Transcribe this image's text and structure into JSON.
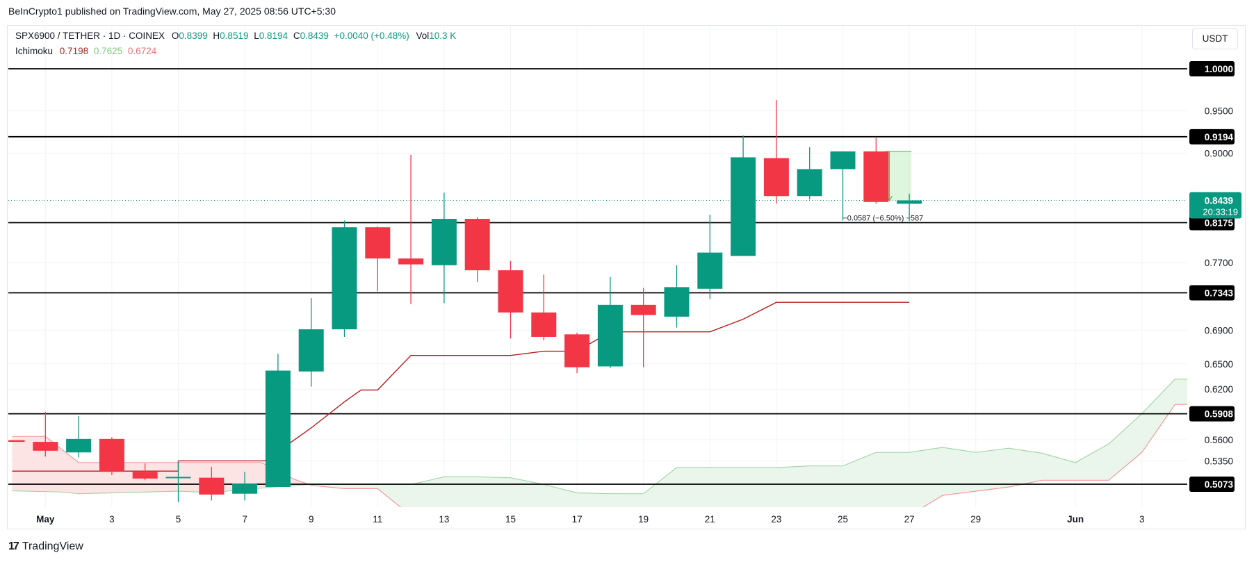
{
  "header": {
    "publisher_line": "BeInCrypto1 published on TradingView.com, May 27, 2025 08:56 UTC+5:30"
  },
  "legend": {
    "symbol": "SPX6900 / TETHER · 1D · COINEX",
    "o_label": "O",
    "o": "0.8399",
    "h_label": "H",
    "h": "0.8519",
    "l_label": "L",
    "l": "0.8194",
    "c_label": "C",
    "c": "0.8439",
    "change": "+0.0040 (+0.48%)",
    "vol_label": "Vol",
    "vol": "10.3 K",
    "indicator_name": "Ichimoku",
    "ichi_1": "0.7198",
    "ichi_2": "0.7625",
    "ichi_3": "0.6724"
  },
  "currency_button": "USDT",
  "footer": {
    "brand": "TradingView",
    "logo_glyph": "17"
  },
  "measure_label": "−0.0587 (−6.50%) −587",
  "last_price": {
    "value": "0.8439",
    "countdown": "20:33:19"
  },
  "colors": {
    "up": "#089981",
    "down": "#f23645",
    "conversion": "#b71c1c",
    "cloud_green": "#a5d6a7",
    "cloud_red": "#ef9a9a",
    "cloud_green_fill": "#e8f5e9",
    "cloud_red_fill": "#fde4e4"
  },
  "chart_data": {
    "type": "candlestick",
    "y_axis": {
      "ticks": [
        "0.9500",
        "0.9000",
        "0.7700",
        "0.6900",
        "0.6500",
        "0.6200",
        "0.5600",
        "0.5350"
      ],
      "ylim": [
        0.4998,
        1.0205
      ],
      "position": "right"
    },
    "x_axis": {
      "ticks": [
        {
          "label": "May",
          "day": 1,
          "bold": true
        },
        {
          "label": "3",
          "day": 3
        },
        {
          "label": "5",
          "day": 5
        },
        {
          "label": "7",
          "day": 7
        },
        {
          "label": "9",
          "day": 9
        },
        {
          "label": "11",
          "day": 11
        },
        {
          "label": "13",
          "day": 13
        },
        {
          "label": "15",
          "day": 15
        },
        {
          "label": "17",
          "day": 17
        },
        {
          "label": "19",
          "day": 19
        },
        {
          "label": "21",
          "day": 21
        },
        {
          "label": "23",
          "day": 23
        },
        {
          "label": "25",
          "day": 25
        },
        {
          "label": "27",
          "day": 27
        },
        {
          "label": "29",
          "day": 29
        },
        {
          "label": "Jun",
          "day": 32,
          "bold": true
        },
        {
          "label": "3",
          "day": 34
        }
      ]
    },
    "horizontal_levels": [
      "1.0000",
      "0.9194",
      "0.8175",
      "0.7343",
      "0.5908",
      "0.5073"
    ],
    "candles": [
      {
        "day": 0,
        "o": 0.5595,
        "h": 0.5595,
        "l": 0.5595,
        "c": 0.5575
      },
      {
        "day": 1,
        "o": 0.5575,
        "h": 0.593,
        "l": 0.54,
        "c": 0.547
      },
      {
        "day": 2,
        "o": 0.545,
        "h": 0.588,
        "l": 0.539,
        "c": 0.561
      },
      {
        "day": 3,
        "o": 0.561,
        "h": 0.563,
        "l": 0.518,
        "c": 0.522
      },
      {
        "day": 4,
        "o": 0.522,
        "h": 0.532,
        "l": 0.512,
        "c": 0.514
      },
      {
        "day": 5,
        "o": 0.515,
        "h": 0.535,
        "l": 0.486,
        "c": 0.516
      },
      {
        "day": 6,
        "o": 0.515,
        "h": 0.528,
        "l": 0.488,
        "c": 0.495
      },
      {
        "day": 7,
        "o": 0.496,
        "h": 0.522,
        "l": 0.488,
        "c": 0.508
      },
      {
        "day": 8,
        "o": 0.504,
        "h": 0.662,
        "l": 0.504,
        "c": 0.642
      },
      {
        "day": 9,
        "o": 0.641,
        "h": 0.728,
        "l": 0.623,
        "c": 0.691
      },
      {
        "day": 10,
        "o": 0.691,
        "h": 0.82,
        "l": 0.682,
        "c": 0.812
      },
      {
        "day": 11,
        "o": 0.812,
        "h": 0.813,
        "l": 0.736,
        "c": 0.775
      },
      {
        "day": 12,
        "o": 0.775,
        "h": 0.898,
        "l": 0.721,
        "c": 0.768
      },
      {
        "day": 13,
        "o": 0.767,
        "h": 0.853,
        "l": 0.722,
        "c": 0.822
      },
      {
        "day": 14,
        "o": 0.822,
        "h": 0.824,
        "l": 0.747,
        "c": 0.761
      },
      {
        "day": 15,
        "o": 0.761,
        "h": 0.772,
        "l": 0.68,
        "c": 0.711
      },
      {
        "day": 16,
        "o": 0.711,
        "h": 0.756,
        "l": 0.678,
        "c": 0.682
      },
      {
        "day": 17,
        "o": 0.685,
        "h": 0.687,
        "l": 0.639,
        "c": 0.646
      },
      {
        "day": 18,
        "o": 0.647,
        "h": 0.753,
        "l": 0.645,
        "c": 0.72
      },
      {
        "day": 19,
        "o": 0.72,
        "h": 0.74,
        "l": 0.646,
        "c": 0.708
      },
      {
        "day": 20,
        "o": 0.706,
        "h": 0.767,
        "l": 0.693,
        "c": 0.741
      },
      {
        "day": 21,
        "o": 0.739,
        "h": 0.827,
        "l": 0.727,
        "c": 0.782
      },
      {
        "day": 22,
        "o": 0.778,
        "h": 0.921,
        "l": 0.778,
        "c": 0.895
      },
      {
        "day": 23,
        "o": 0.894,
        "h": 0.963,
        "l": 0.84,
        "c": 0.849
      },
      {
        "day": 24,
        "o": 0.849,
        "h": 0.907,
        "l": 0.845,
        "c": 0.881
      },
      {
        "day": 25,
        "o": 0.881,
        "h": 0.902,
        "l": 0.82,
        "c": 0.902
      },
      {
        "day": 26,
        "o": 0.902,
        "h": 0.918,
        "l": 0.84,
        "c": 0.842
      },
      {
        "day": 27,
        "o": 0.8399,
        "h": 0.8519,
        "l": 0.8194,
        "c": 0.8439
      }
    ],
    "conversion_line": [
      [
        0,
        0.5228
      ],
      [
        5,
        0.5228
      ],
      [
        5,
        0.535
      ],
      [
        7.6,
        0.535
      ],
      [
        9,
        0.574
      ],
      [
        10,
        0.605
      ],
      [
        10.5,
        0.619
      ],
      [
        11,
        0.619
      ],
      [
        11,
        0.619
      ],
      [
        12,
        0.66
      ],
      [
        15,
        0.66
      ],
      [
        16,
        0.665
      ],
      [
        17,
        0.665
      ],
      [
        18,
        0.688
      ],
      [
        21,
        0.688
      ],
      [
        22,
        0.703
      ],
      [
        23,
        0.723
      ],
      [
        27,
        0.723
      ]
    ],
    "cloud": {
      "span_a": [
        [
          0,
          0.4995
        ],
        [
          1.5,
          0.498
        ],
        [
          2,
          0.496
        ],
        [
          5,
          0.499
        ],
        [
          6,
          0.4975
        ],
        [
          7.6,
          0.503
        ],
        [
          8.5,
          0.506
        ],
        [
          9,
          0.507
        ],
        [
          12,
          0.507
        ],
        [
          13,
          0.516
        ],
        [
          14,
          0.516
        ],
        [
          15,
          0.515
        ],
        [
          16,
          0.507
        ],
        [
          17,
          0.497
        ],
        [
          18,
          0.496
        ],
        [
          19,
          0.496
        ],
        [
          20,
          0.527
        ],
        [
          23,
          0.527
        ],
        [
          24,
          0.529
        ],
        [
          25,
          0.529
        ],
        [
          26,
          0.545
        ],
        [
          27,
          0.545
        ],
        [
          28,
          0.551
        ],
        [
          29,
          0.545
        ],
        [
          30,
          0.55
        ],
        [
          31,
          0.544
        ],
        [
          32,
          0.533
        ],
        [
          33,
          0.555
        ],
        [
          34,
          0.591
        ],
        [
          35,
          0.632
        ],
        [
          35.5,
          0.632
        ]
      ],
      "span_b": [
        [
          0,
          0.564
        ],
        [
          1,
          0.564
        ],
        [
          2,
          0.533
        ],
        [
          5,
          0.533
        ],
        [
          7.5,
          0.533
        ],
        [
          8.5,
          0.513
        ],
        [
          9,
          0.506
        ],
        [
          10,
          0.502
        ],
        [
          11,
          0.502
        ],
        [
          12,
          0.47
        ],
        [
          27,
          0.47
        ],
        [
          28,
          0.494
        ],
        [
          29,
          0.499
        ],
        [
          30,
          0.504
        ],
        [
          31,
          0.512
        ],
        [
          32,
          0.512
        ],
        [
          33,
          0.512
        ],
        [
          34,
          0.545
        ],
        [
          35,
          0.602
        ],
        [
          35.5,
          0.602
        ]
      ]
    }
  }
}
